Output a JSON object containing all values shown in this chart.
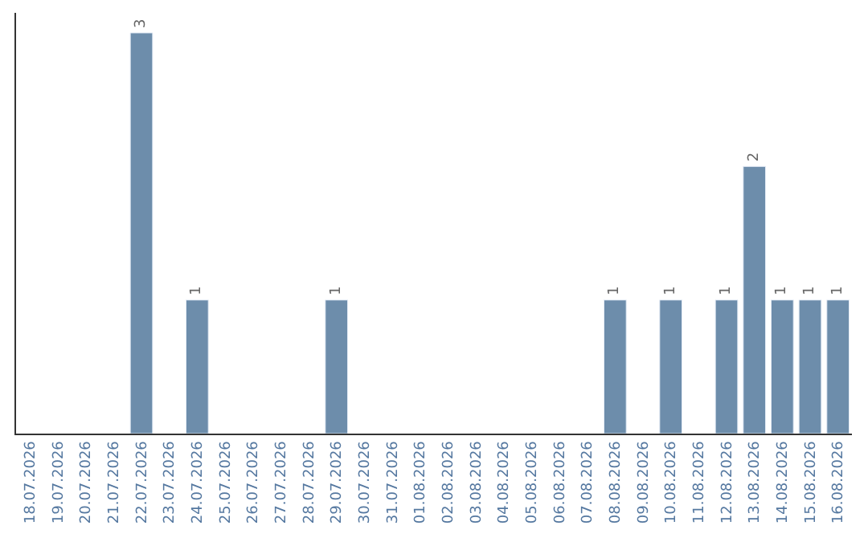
{
  "chart_data": {
    "type": "bar",
    "categories": [
      "18.07.2026",
      "19.07.2026",
      "20.07.2026",
      "21.07.2026",
      "22.07.2026",
      "23.07.2026",
      "24.07.2026",
      "25.07.2026",
      "26.07.2026",
      "27.07.2026",
      "28.07.2026",
      "29.07.2026",
      "30.07.2026",
      "31.07.2026",
      "01.08.2026",
      "02.08.2026",
      "03.08.2026",
      "04.08.2026",
      "05.08.2026",
      "06.08.2026",
      "07.08.2026",
      "08.08.2026",
      "09.08.2026",
      "10.08.2026",
      "11.08.2026",
      "12.08.2026",
      "13.08.2026",
      "14.08.2026",
      "15.08.2026",
      "16.08.2026"
    ],
    "values": [
      null,
      null,
      null,
      null,
      3,
      null,
      1,
      null,
      null,
      null,
      null,
      1,
      null,
      null,
      null,
      null,
      null,
      null,
      null,
      null,
      null,
      1,
      null,
      1,
      null,
      1,
      2,
      1,
      1,
      1
    ],
    "value_labels": [
      null,
      null,
      null,
      null,
      "3",
      null,
      "1",
      null,
      null,
      null,
      null,
      "1",
      null,
      null,
      null,
      null,
      null,
      null,
      null,
      null,
      null,
      "1",
      null,
      "1",
      null,
      "1",
      "2",
      "1",
      "1",
      "1"
    ],
    "color": "#6d8dab",
    "ylim": [
      0,
      3.15
    ],
    "tick_labels": "x",
    "legend": false
  }
}
